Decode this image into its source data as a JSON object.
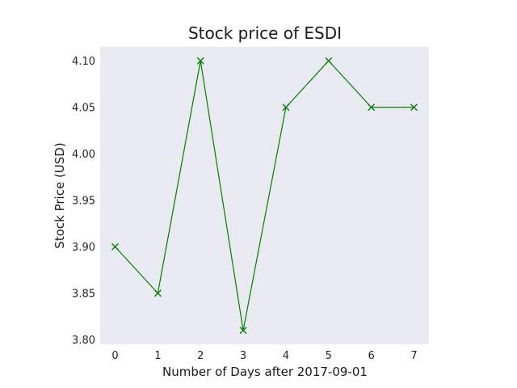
{
  "chart_data": {
    "type": "line",
    "title": "Stock price of ESDI",
    "xlabel": "Number of Days after 2017-09-01",
    "ylabel": "Stock Price (USD)",
    "x": [
      0,
      1,
      2,
      3,
      4,
      5,
      6,
      7
    ],
    "series": [
      {
        "values": [
          3.9,
          3.85,
          4.1,
          3.81,
          4.05,
          4.1,
          4.05,
          4.05
        ],
        "color": "#008000",
        "marker": "x"
      }
    ],
    "xticks": [
      "0",
      "1",
      "2",
      "3",
      "4",
      "5",
      "6",
      "7"
    ],
    "yticks": [
      "3.80",
      "3.85",
      "3.90",
      "3.95",
      "4.00",
      "4.05",
      "4.10"
    ],
    "xlim": [
      -0.35,
      7.35
    ],
    "ylim": [
      3.795,
      4.115
    ],
    "grid": false,
    "background_color": "#eaeaf2"
  }
}
